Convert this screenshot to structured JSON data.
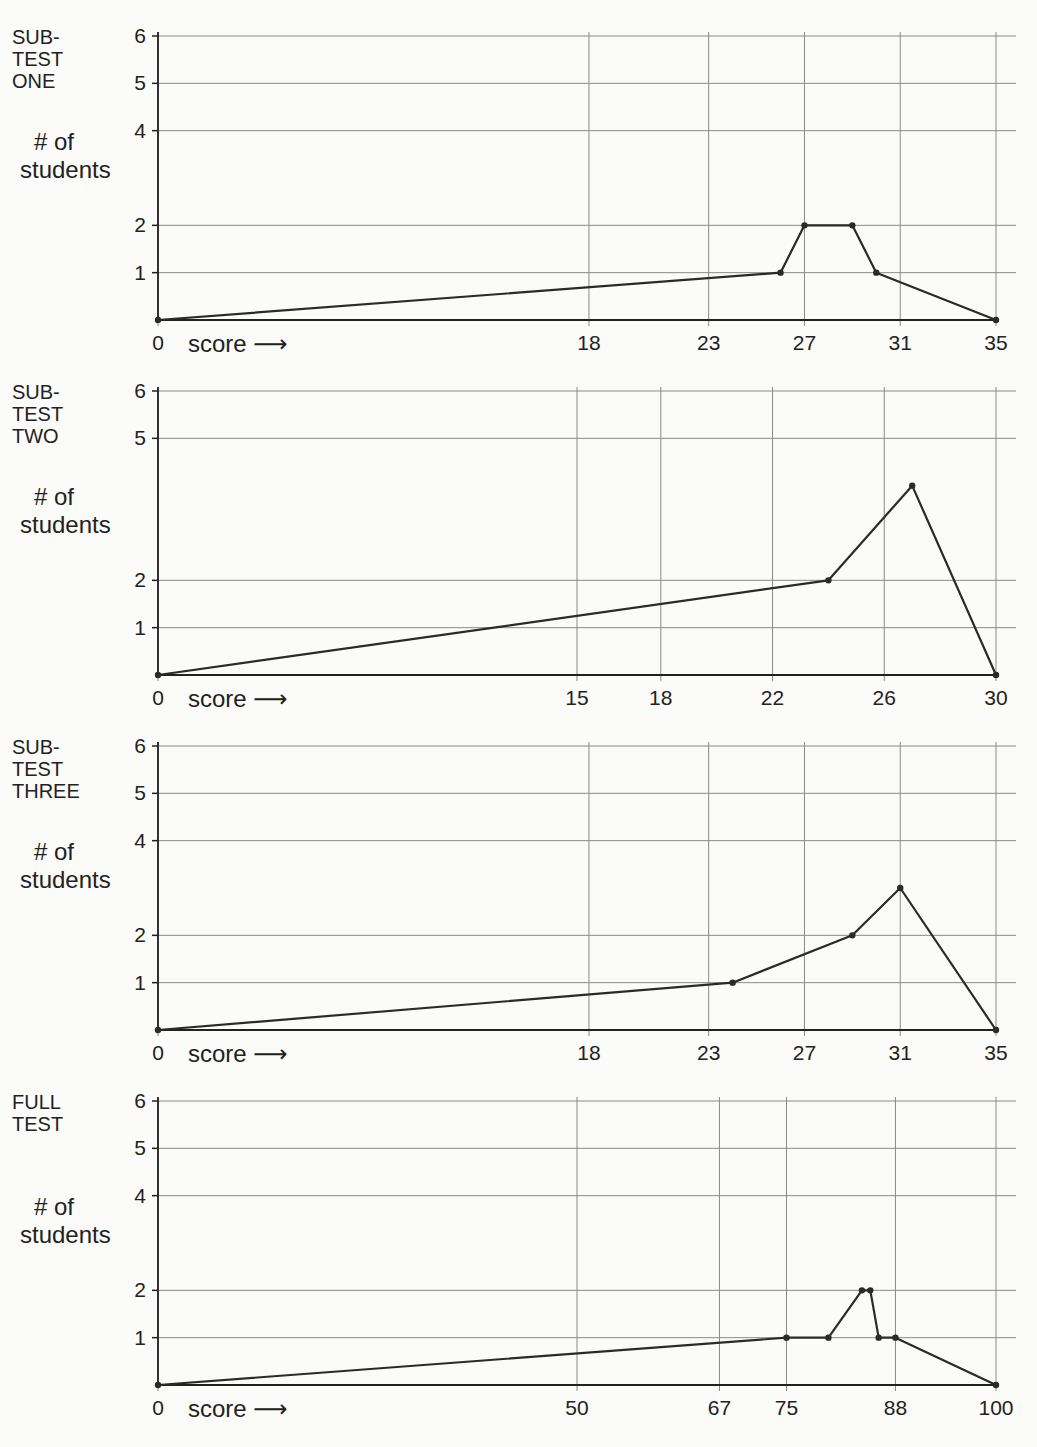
{
  "chart_data": [
    {
      "type": "line",
      "title": "SUB-TEST ONE",
      "y_label": "# of students",
      "x_label": "score ⟶",
      "x": [
        0,
        26,
        27,
        29,
        30,
        35
      ],
      "values": [
        0,
        1,
        2,
        2,
        1,
        0
      ],
      "color": "#2a2a2a",
      "marker": "circle",
      "grid": true,
      "xlim": [
        0,
        35
      ],
      "xticks": [
        0,
        18,
        23,
        27,
        31,
        35
      ],
      "ylim": [
        0,
        6
      ],
      "yticks": [
        1,
        2,
        4,
        5,
        6
      ]
    },
    {
      "type": "line",
      "title": "SUB-TEST TWO",
      "y_label": "# of students",
      "x_label": "score ⟶",
      "x": [
        0,
        24,
        27,
        30
      ],
      "values": [
        0,
        2,
        4,
        0
      ],
      "color": "#2a2a2a",
      "marker": "circle",
      "grid": true,
      "xlim": [
        0,
        30
      ],
      "xticks": [
        0,
        15,
        18,
        22,
        26,
        30
      ],
      "ylim": [
        0,
        6
      ],
      "yticks": [
        1,
        2,
        5,
        6
      ]
    },
    {
      "type": "line",
      "title": "SUB-TEST THREE",
      "y_label": "# of students",
      "x_label": "score ⟶",
      "x": [
        0,
        24,
        29,
        31,
        35
      ],
      "values": [
        0,
        1,
        2,
        3,
        0
      ],
      "color": "#2a2a2a",
      "marker": "circle",
      "grid": true,
      "xlim": [
        0,
        35
      ],
      "xticks": [
        0,
        18,
        23,
        27,
        31,
        35
      ],
      "ylim": [
        0,
        6
      ],
      "yticks": [
        1,
        2,
        4,
        5,
        6
      ]
    },
    {
      "type": "line",
      "title": "FULL TEST",
      "y_label": "# of students",
      "x_label": "score ⟶",
      "x": [
        0,
        75,
        80,
        84,
        85,
        86,
        88,
        100
      ],
      "values": [
        0,
        1,
        1,
        2,
        2,
        1,
        1,
        0
      ],
      "color": "#2a2a2a",
      "marker": "circle",
      "grid": true,
      "xlim": [
        0,
        100
      ],
      "xticks": [
        0,
        50,
        67,
        75,
        88,
        100
      ],
      "ylim": [
        0,
        6
      ],
      "yticks": [
        1,
        2,
        4,
        5,
        6
      ]
    }
  ]
}
